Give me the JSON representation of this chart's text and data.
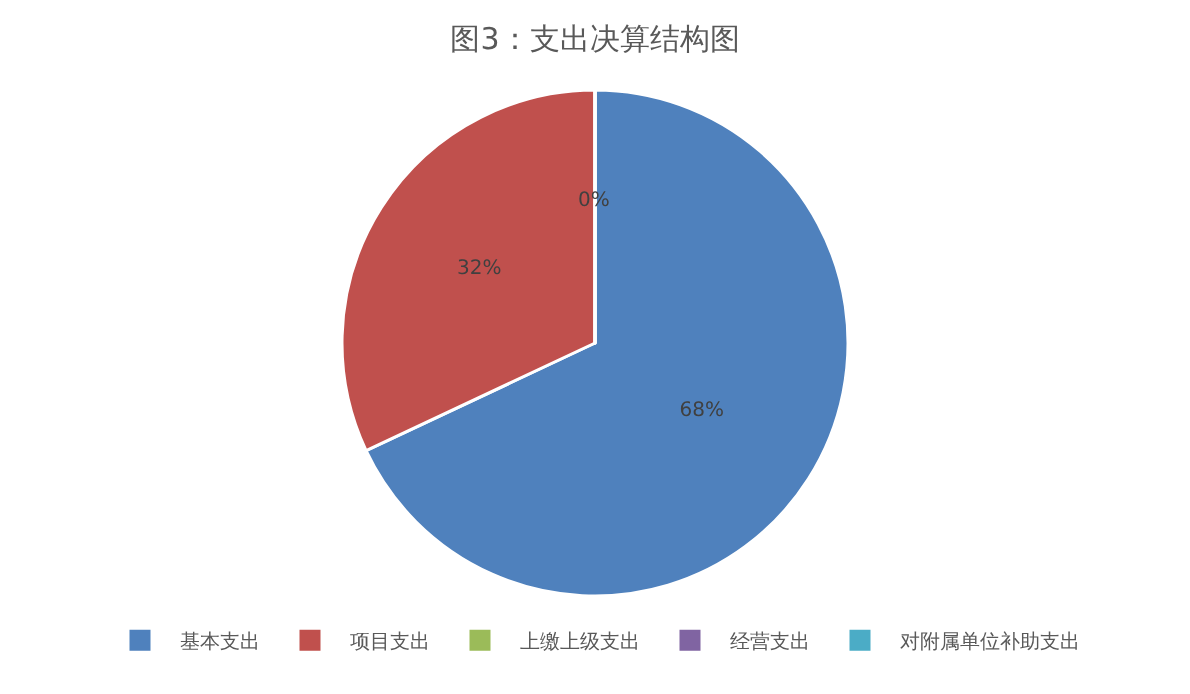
{
  "chart_data": {
    "type": "pie",
    "title": "图3：支出决算结构图",
    "categories": [
      "基本支出",
      "项目支出",
      "上缴上级支出",
      "经营支出",
      "对附属单位补助支出"
    ],
    "values": [
      68,
      32,
      0,
      0,
      0
    ],
    "colors": [
      "#4f81bd",
      "#c0504d",
      "#9bbb59",
      "#8064a2",
      "#4bacc6"
    ],
    "value_labels": [
      "68%",
      "32%",
      "0%",
      null,
      null
    ],
    "legend": "bottom"
  }
}
